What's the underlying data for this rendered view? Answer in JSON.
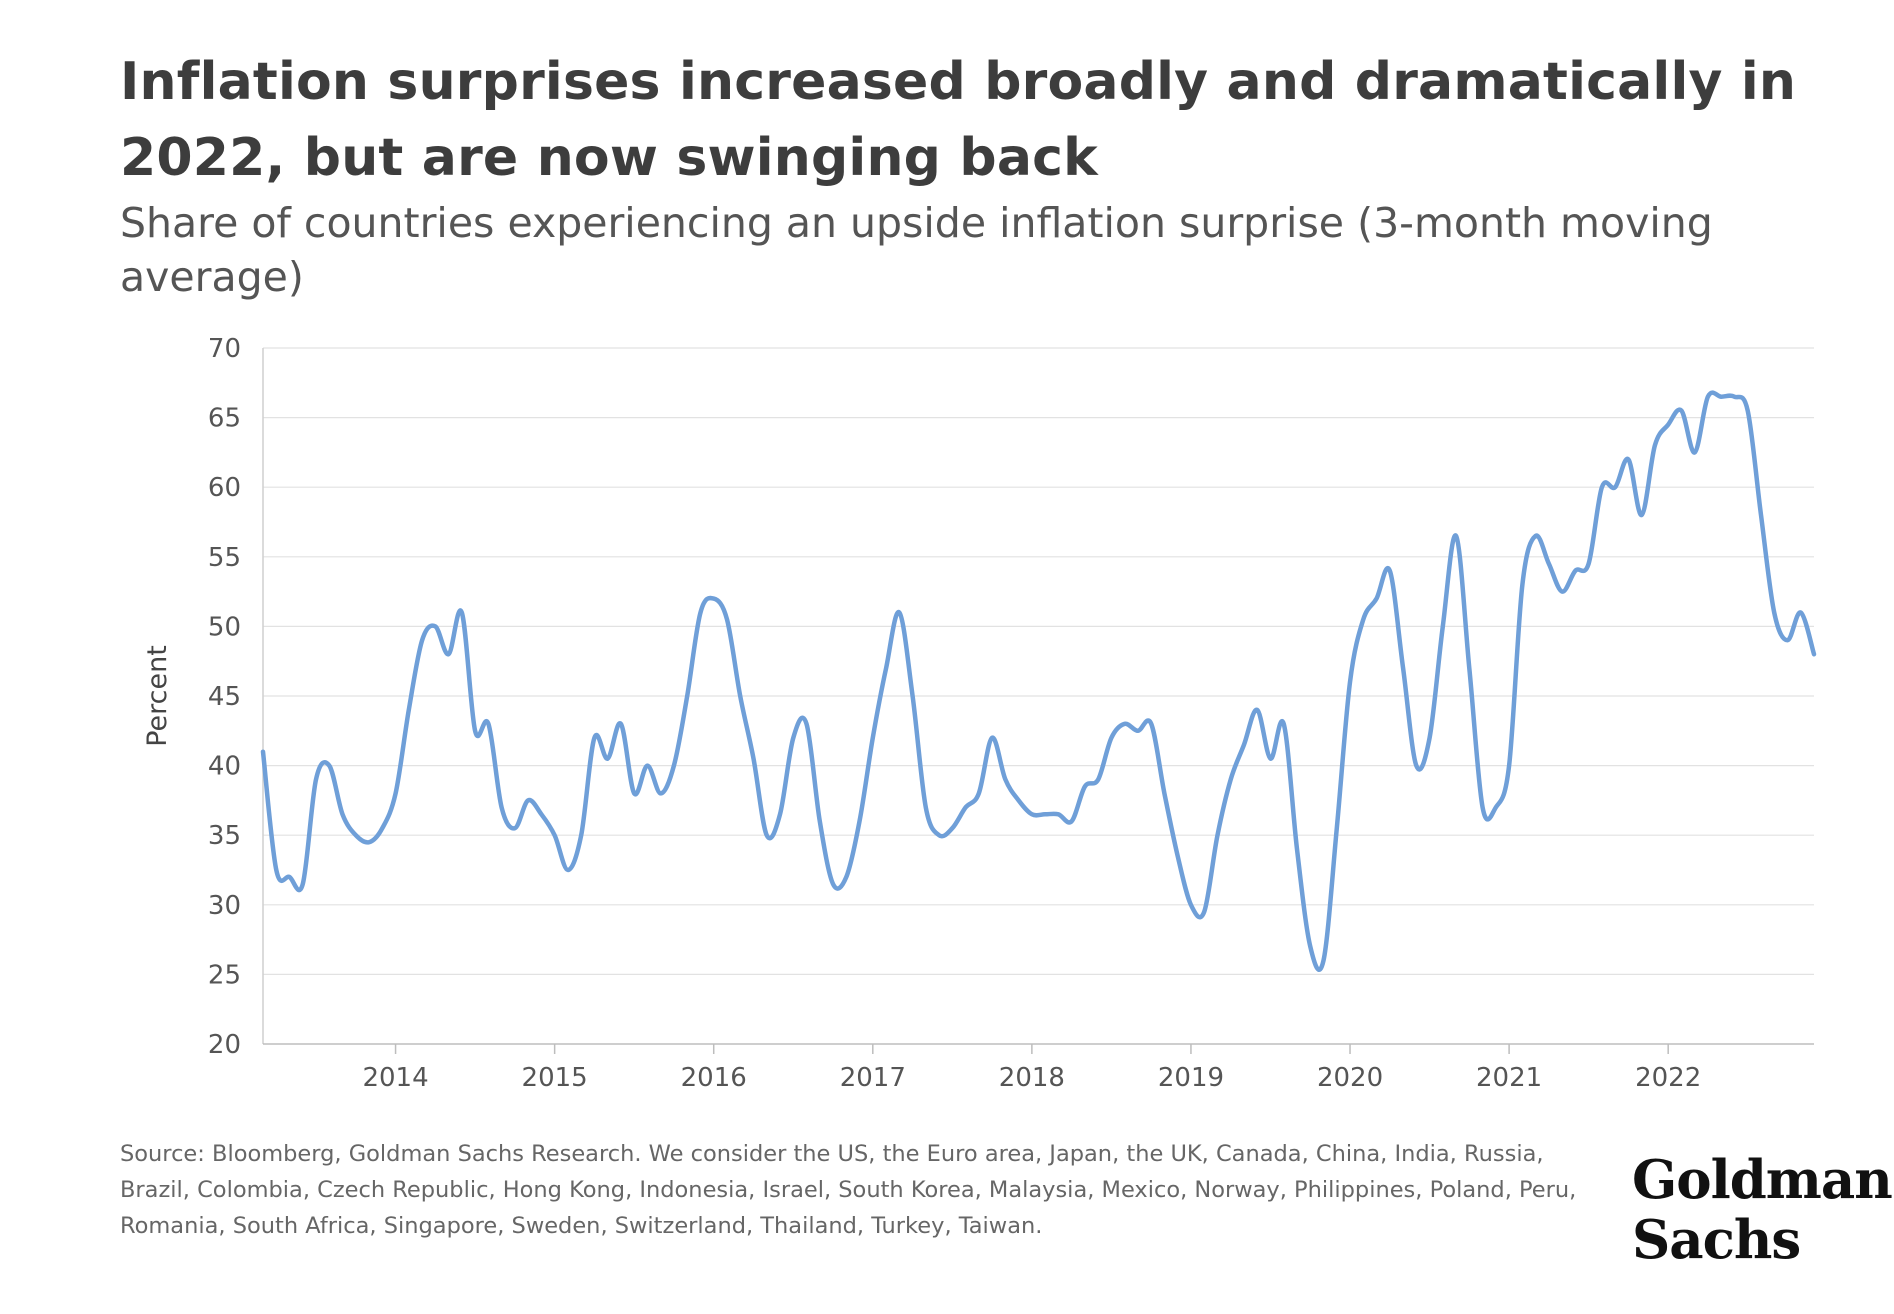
{
  "header": {
    "title": "Inflation surprises increased broadly and dramatically in 2022, but are now swinging back",
    "subtitle": "Share of countries experiencing an upside inflation surprise (3-month moving average)"
  },
  "footer": {
    "source": "Source: Bloomberg, Goldman Sachs Research. We consider the US, the Euro area, Japan, the UK, Canada, China, India, Russia, Brazil, Colombia, Czech Republic, Hong Kong, Indonesia, Israel, South Korea, Malaysia, Mexico, Norway, Philippines, Poland, Peru, Romania, South Africa, Singapore, Sweden, Switzerland, Thailand, Turkey, Taiwan.",
    "logo_line1": "Goldman",
    "logo_line2": "Sachs"
  },
  "chart_data": {
    "type": "line",
    "title": "Inflation surprises increased broadly and dramatically in 2022, but are now swinging back",
    "subtitle": "Share of countries experiencing an upside inflation surprise (3-month moving average)",
    "xlabel": "",
    "ylabel": "Percent",
    "ylim": [
      20,
      70
    ],
    "yticks": [
      20,
      25,
      30,
      35,
      40,
      45,
      50,
      55,
      60,
      65,
      70
    ],
    "xlim": [
      "2013-03",
      "2022-12"
    ],
    "xtick_labels": [
      "2014",
      "2015",
      "2016",
      "2017",
      "2018",
      "2019",
      "2020",
      "2021",
      "2022"
    ],
    "grid": "horizontal",
    "line_color": "#6f9fd8",
    "x": [
      "2013-03",
      "2013-04",
      "2013-05",
      "2013-06",
      "2013-07",
      "2013-08",
      "2013-09",
      "2013-10",
      "2013-11",
      "2013-12",
      "2014-01",
      "2014-02",
      "2014-03",
      "2014-04",
      "2014-05",
      "2014-06",
      "2014-07",
      "2014-08",
      "2014-09",
      "2014-10",
      "2014-11",
      "2014-12",
      "2015-01",
      "2015-02",
      "2015-03",
      "2015-04",
      "2015-05",
      "2015-06",
      "2015-07",
      "2015-08",
      "2015-09",
      "2015-10",
      "2015-11",
      "2015-12",
      "2016-01",
      "2016-02",
      "2016-03",
      "2016-04",
      "2016-05",
      "2016-06",
      "2016-07",
      "2016-08",
      "2016-09",
      "2016-10",
      "2016-11",
      "2016-12",
      "2017-01",
      "2017-02",
      "2017-03",
      "2017-04",
      "2017-05",
      "2017-06",
      "2017-07",
      "2017-08",
      "2017-09",
      "2017-10",
      "2017-11",
      "2017-12",
      "2018-01",
      "2018-02",
      "2018-03",
      "2018-04",
      "2018-05",
      "2018-06",
      "2018-07",
      "2018-08",
      "2018-09",
      "2018-10",
      "2018-11",
      "2018-12",
      "2019-01",
      "2019-02",
      "2019-03",
      "2019-04",
      "2019-05",
      "2019-06",
      "2019-07",
      "2019-08",
      "2019-09",
      "2019-10",
      "2019-11",
      "2019-12",
      "2020-01",
      "2020-02",
      "2020-03",
      "2020-04",
      "2020-05",
      "2020-06",
      "2020-07",
      "2020-08",
      "2020-09",
      "2020-10",
      "2020-11",
      "2020-12",
      "2021-01",
      "2021-02",
      "2021-03",
      "2021-04",
      "2021-05",
      "2021-06",
      "2021-07",
      "2021-08",
      "2021-09",
      "2021-10",
      "2021-11",
      "2021-12",
      "2022-01",
      "2022-02",
      "2022-03",
      "2022-04",
      "2022-05",
      "2022-06",
      "2022-07",
      "2022-08",
      "2022-09",
      "2022-10",
      "2022-11",
      "2022-12"
    ],
    "series": [
      {
        "values": [
          41,
          32.5,
          32,
          31.5,
          39,
          40,
          36.5,
          35,
          34.5,
          35.5,
          38,
          44,
          49,
          50,
          48,
          51,
          42.5,
          43,
          37,
          35.5,
          37.5,
          36.5,
          35,
          32.5,
          35,
          42,
          40.5,
          43,
          38,
          40,
          38,
          40,
          45,
          51,
          52,
          50.5,
          45,
          40.5,
          35,
          36.5,
          42,
          43,
          36,
          31.5,
          32,
          36,
          42,
          47,
          51,
          45,
          37,
          35,
          35.5,
          37,
          38,
          42,
          39,
          37.5,
          36.5,
          36.5,
          36.5,
          36,
          38.5,
          39,
          42,
          43,
          42.5,
          43,
          38,
          33.5,
          30,
          29.5,
          35,
          39,
          41.5,
          44,
          40.5,
          43,
          34,
          27,
          26,
          35.5,
          46,
          50.5,
          52,
          54,
          47,
          40,
          42,
          50,
          56.5,
          47,
          37,
          37,
          40,
          53,
          56.5,
          54.5,
          52.5,
          54,
          54.5,
          60,
          60,
          62,
          58,
          63,
          64.5,
          65.5,
          62.5,
          66.5,
          66.5,
          66.5,
          65.5,
          58,
          51,
          49,
          51,
          48
        ]
      }
    ]
  }
}
